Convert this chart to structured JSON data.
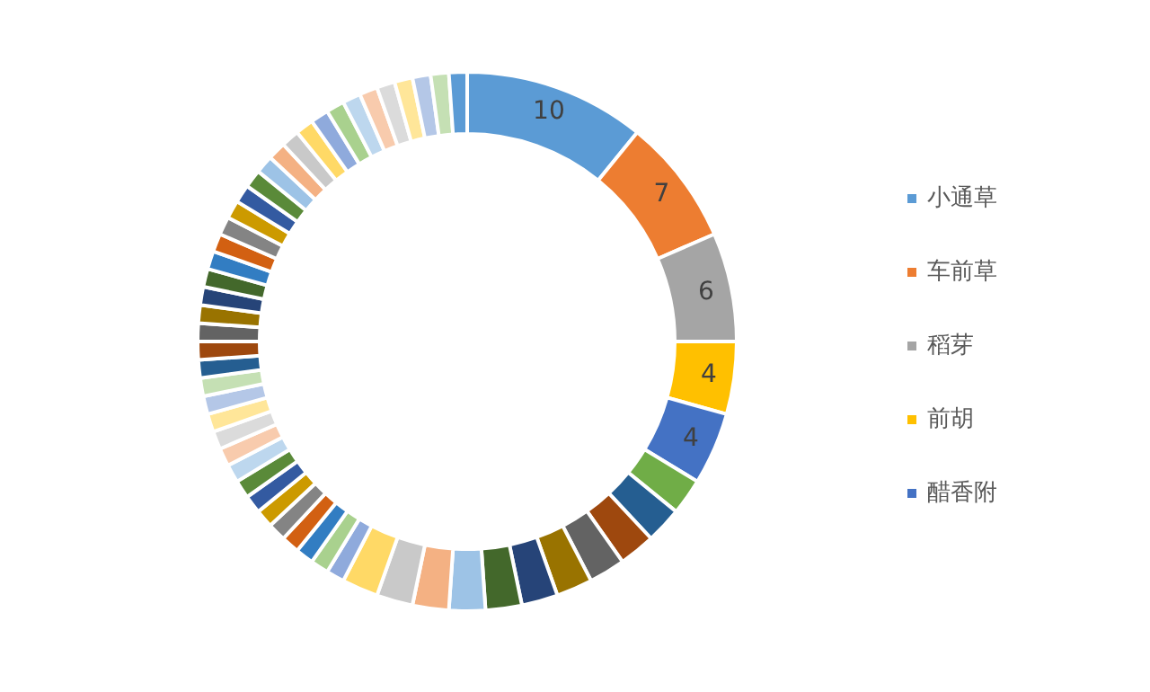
{
  "chart_data": {
    "type": "donut",
    "categories": [
      "小通草",
      "车前草",
      "稻芽",
      "前胡",
      "醋香附",
      null,
      null,
      null,
      null,
      null,
      null,
      null,
      null,
      null,
      null,
      null,
      null,
      null,
      null,
      null,
      null,
      null,
      null,
      null,
      null,
      null,
      null,
      null,
      null,
      null,
      null,
      null,
      null,
      null,
      null,
      null,
      null,
      null,
      null,
      null,
      null,
      null,
      null,
      null,
      null,
      null,
      null,
      null,
      null,
      null,
      null,
      null,
      null,
      null,
      null
    ],
    "values": [
      10,
      7,
      6,
      4,
      4,
      2,
      2,
      2,
      2,
      2,
      2,
      2,
      2,
      2,
      2,
      2,
      1,
      1,
      1,
      1,
      1,
      1,
      1,
      1,
      1,
      1,
      1,
      1,
      1,
      1,
      1,
      1,
      1,
      1,
      1,
      1,
      1,
      1,
      1,
      1,
      1,
      1,
      1,
      1,
      1,
      1,
      1,
      1,
      1,
      1,
      1,
      1,
      1,
      1,
      1
    ],
    "value_labels": [
      "10",
      "7",
      "6",
      "4",
      "4",
      null,
      null,
      null,
      null,
      null,
      null,
      null,
      null,
      null,
      null,
      null,
      null,
      null,
      null,
      null,
      null,
      null,
      null,
      null,
      null,
      null,
      null,
      null,
      null,
      null,
      null,
      null,
      null,
      null,
      null,
      null,
      null,
      null,
      null,
      null,
      null,
      null,
      null,
      null,
      null,
      null,
      null,
      null,
      null,
      null,
      null,
      null,
      null,
      null,
      null
    ],
    "colors": [
      "#5b9bd5",
      "#ed7d31",
      "#a5a5a5",
      "#ffc000",
      "#4472c4",
      "#70ad47",
      "#255e91",
      "#9e480e",
      "#636363",
      "#997300",
      "#264478",
      "#43682b",
      "#9dc3e6",
      "#f4b183",
      "#c9c9c9",
      "#ffd966",
      "#8faadc",
      "#a9d18e",
      "#327dc2",
      "#d26012",
      "#848484",
      "#cc9a00",
      "#335aa1",
      "#5a8a39",
      "#bdd7ee",
      "#f8cbad",
      "#dbdbdb",
      "#ffe699",
      "#b4c7e7",
      "#c5e0b4",
      "#255e91",
      "#9e480e",
      "#636363",
      "#997300",
      "#264478",
      "#43682b",
      "#327dc2",
      "#d26012",
      "#848484",
      "#cc9a00",
      "#335aa1",
      "#5a8a39",
      "#9dc3e6",
      "#f4b183",
      "#c9c9c9",
      "#ffd966",
      "#8faadc",
      "#a9d18e",
      "#bdd7ee",
      "#f8cbad",
      "#dbdbdb",
      "#ffe699",
      "#b4c7e7",
      "#c5e0b4",
      "#5b9bd5"
    ],
    "legend": "right"
  }
}
